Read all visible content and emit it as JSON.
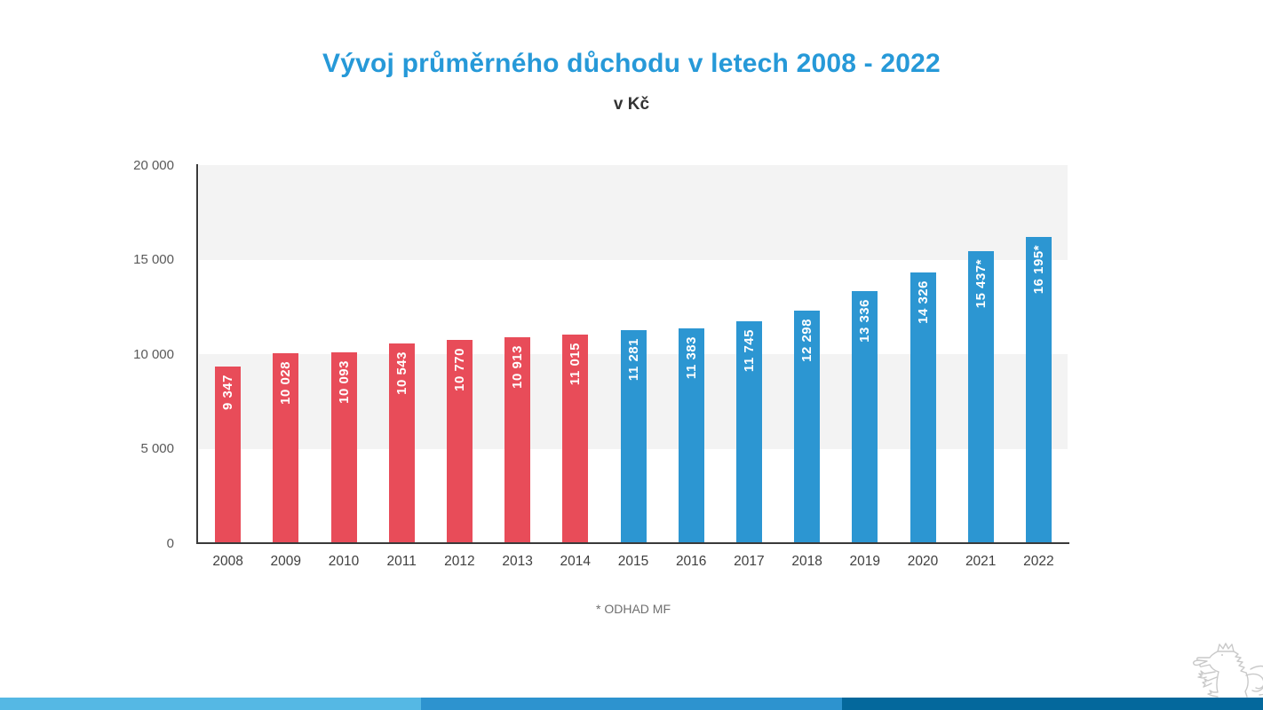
{
  "header": {
    "title": "Vývoj průměrného důchodu v letech 2008 - 2022",
    "subtitle": "v Kč",
    "title_color": "#2699d8"
  },
  "footnote": {
    "text": "* ODHAD MF"
  },
  "chart_data": {
    "type": "bar",
    "title": "Vývoj průměrného důchodu v letech 2008 - 2022",
    "subtitle": "v Kč",
    "unit": "Kč",
    "categories": [
      "2008",
      "2009",
      "2010",
      "2011",
      "2012",
      "2013",
      "2014",
      "2015",
      "2016",
      "2017",
      "2018",
      "2019",
      "2020",
      "2021",
      "2022"
    ],
    "values": [
      9347,
      10028,
      10093,
      10543,
      10770,
      10913,
      11015,
      11281,
      11383,
      11745,
      12298,
      13336,
      14326,
      15437,
      16195
    ],
    "value_labels": [
      "9 347",
      "10 028",
      "10 093",
      "10 543",
      "10 770",
      "10 913",
      "11 015",
      "11 281",
      "11 383",
      "11 745",
      "12 298",
      "13 336",
      "14 326",
      "15 437*",
      "16 195*"
    ],
    "groups": [
      "red",
      "red",
      "red",
      "red",
      "red",
      "red",
      "red",
      "blue",
      "blue",
      "blue",
      "blue",
      "blue",
      "blue",
      "blue",
      "blue"
    ],
    "color_groups": {
      "red": "#e84c59",
      "blue": "#2c96d2"
    },
    "estimated_years": [
      "2021",
      "2022"
    ],
    "annotation": "* ODHAD MF",
    "xlabel": "",
    "ylabel": "",
    "ylim": [
      0,
      20000
    ],
    "yticks": [
      0,
      5000,
      10000,
      15000,
      20000
    ],
    "ytick_labels": [
      "0",
      "5 000",
      "10 000",
      "15 000",
      "20 000"
    ],
    "band_color": "#f3f3f3",
    "grid": "alternating horizontal bands (5000–10000 and 15000–20000 shaded)",
    "legend": "none"
  },
  "footer": {
    "stripe_colors": [
      "#55b8e4",
      "#2d93cf",
      "#04689c"
    ],
    "logo": "czech-heraldic-lion"
  }
}
